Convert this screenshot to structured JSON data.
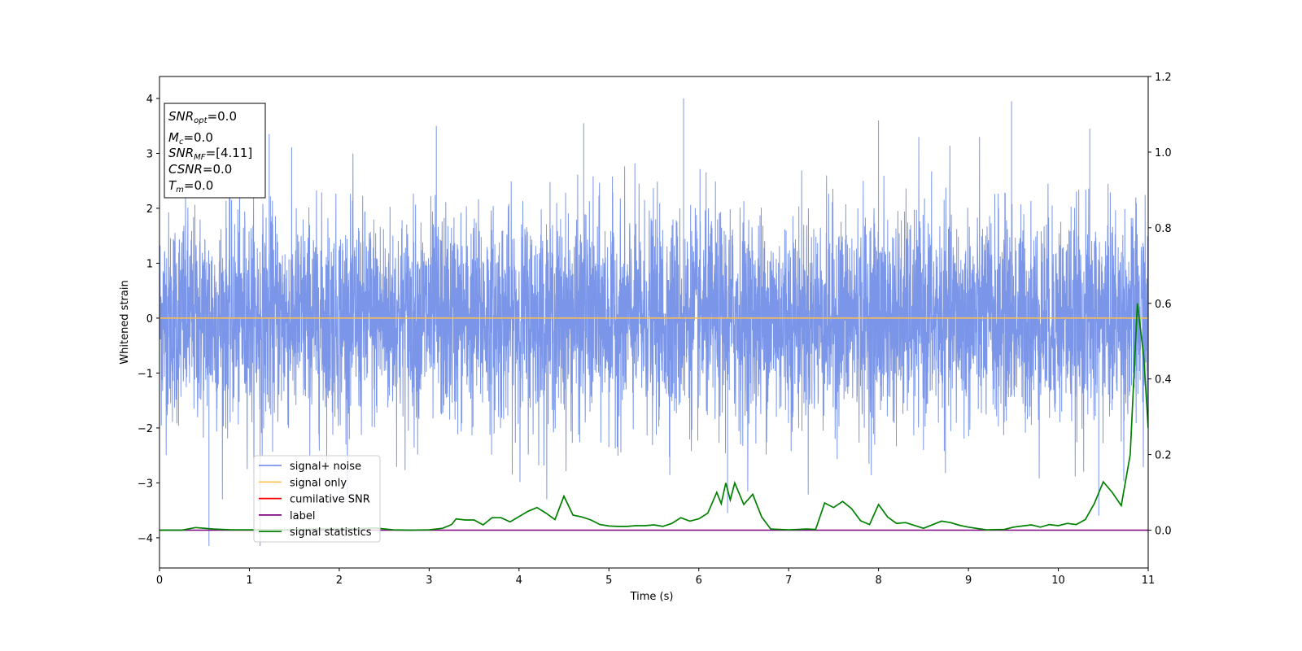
{
  "chart_data": {
    "type": "line",
    "title": "",
    "xlabel": "Time (s)",
    "ylabel": "Whitened strain",
    "y2label": "",
    "xlim": [
      0,
      11
    ],
    "ylim": [
      -4.55,
      4.4
    ],
    "y2lim": [
      -0.1,
      1.2
    ],
    "xticks": [
      0,
      1,
      2,
      3,
      4,
      5,
      6,
      7,
      8,
      9,
      10,
      11
    ],
    "yticks": [
      -4,
      -3,
      -2,
      -1,
      0,
      1,
      2,
      3,
      4
    ],
    "y2ticks": [
      "0.0",
      "0.2",
      "0.4",
      "0.6",
      "0.8",
      "1.0",
      "1.2"
    ],
    "grid": false,
    "legend_position": "lower-left",
    "legend": [
      {
        "label": "signal+ noise",
        "color": "#7b96e8"
      },
      {
        "label": "signal only",
        "color": "#ffc04d"
      },
      {
        "label": "cumilative SNR",
        "color": "#ff0000"
      },
      {
        "label": "label",
        "color": "#800080"
      },
      {
        "label": "signal statistics",
        "color": "#008000"
      }
    ],
    "info_box": [
      {
        "main": "SNR",
        "sub": "opt",
        "rest": "=0.0"
      },
      {
        "main": "M",
        "sub": "c",
        "rest": "=0.0"
      },
      {
        "main": "SNR",
        "sub": "MF",
        "rest": "=[4.11]"
      },
      {
        "main": "CSNR",
        "sub": "",
        "rest": "=0.0"
      },
      {
        "main": "T",
        "sub": "m",
        "rest": "=0.0"
      }
    ],
    "series": [
      {
        "name": "signal+ noise",
        "axis": "left",
        "color": "#7b96e8",
        "description_values": "dense noise, approx. N(0,1)",
        "peaks": [
          {
            "x": 0.55,
            "y": -4.15
          },
          {
            "x": 1.12,
            "y": -4.15
          },
          {
            "x": 1.22,
            "y": 3.35
          },
          {
            "x": 3.08,
            "y": 3.5
          },
          {
            "x": 4.72,
            "y": 3.55
          },
          {
            "x": 5.83,
            "y": 4.0
          },
          {
            "x": 6.32,
            "y": -3.55
          },
          {
            "x": 8.0,
            "y": 3.6
          },
          {
            "x": 9.48,
            "y": 3.95
          },
          {
            "x": 10.35,
            "y": 3.45
          },
          {
            "x": 10.45,
            "y": -3.6
          }
        ]
      },
      {
        "name": "signal only",
        "axis": "left",
        "color": "#ffc04d",
        "x": [
          0,
          11
        ],
        "y": [
          0,
          0
        ]
      },
      {
        "name": "label",
        "axis": "right",
        "color": "#800080",
        "x": [
          0,
          11
        ],
        "y": [
          0,
          0
        ]
      },
      {
        "name": "signal statistics",
        "axis": "right",
        "color": "#008000",
        "x": [
          0.0,
          0.25,
          0.4,
          0.6,
          0.8,
          1.0,
          1.2,
          1.4,
          1.6,
          1.8,
          2.0,
          2.2,
          2.4,
          2.6,
          2.8,
          3.0,
          3.15,
          3.25,
          3.3,
          3.4,
          3.5,
          3.6,
          3.7,
          3.8,
          3.9,
          4.0,
          4.1,
          4.2,
          4.3,
          4.4,
          4.5,
          4.6,
          4.7,
          4.8,
          4.9,
          5.0,
          5.1,
          5.2,
          5.3,
          5.4,
          5.5,
          5.6,
          5.7,
          5.8,
          5.9,
          6.0,
          6.1,
          6.2,
          6.25,
          6.3,
          6.35,
          6.4,
          6.5,
          6.6,
          6.7,
          6.8,
          7.0,
          7.2,
          7.3,
          7.4,
          7.5,
          7.6,
          7.7,
          7.8,
          7.9,
          8.0,
          8.1,
          8.2,
          8.3,
          8.5,
          8.7,
          8.8,
          8.9,
          9.0,
          9.2,
          9.4,
          9.5,
          9.6,
          9.7,
          9.8,
          9.9,
          10.0,
          10.1,
          10.2,
          10.3,
          10.4,
          10.5,
          10.6,
          10.7,
          10.8,
          10.88,
          10.95,
          11.0
        ],
        "y": [
          0.0,
          0.0,
          0.007,
          0.003,
          0.001,
          0.001,
          0.001,
          0.001,
          0.002,
          0.003,
          0.003,
          0.004,
          0.006,
          0.001,
          0.0,
          0.001,
          0.005,
          0.015,
          0.03,
          0.027,
          0.027,
          0.014,
          0.033,
          0.033,
          0.022,
          0.036,
          0.05,
          0.06,
          0.045,
          0.028,
          0.09,
          0.04,
          0.035,
          0.027,
          0.015,
          0.011,
          0.01,
          0.01,
          0.012,
          0.012,
          0.014,
          0.01,
          0.018,
          0.033,
          0.024,
          0.03,
          0.045,
          0.1,
          0.07,
          0.125,
          0.08,
          0.125,
          0.068,
          0.095,
          0.035,
          0.003,
          0.001,
          0.003,
          0.002,
          0.072,
          0.06,
          0.076,
          0.057,
          0.025,
          0.015,
          0.068,
          0.035,
          0.018,
          0.02,
          0.005,
          0.024,
          0.02,
          0.013,
          0.008,
          0.001,
          0.002,
          0.008,
          0.011,
          0.014,
          0.008,
          0.015,
          0.012,
          0.018,
          0.015,
          0.028,
          0.07,
          0.128,
          0.1,
          0.065,
          0.2,
          0.6,
          0.46,
          0.27
        ]
      }
    ]
  }
}
